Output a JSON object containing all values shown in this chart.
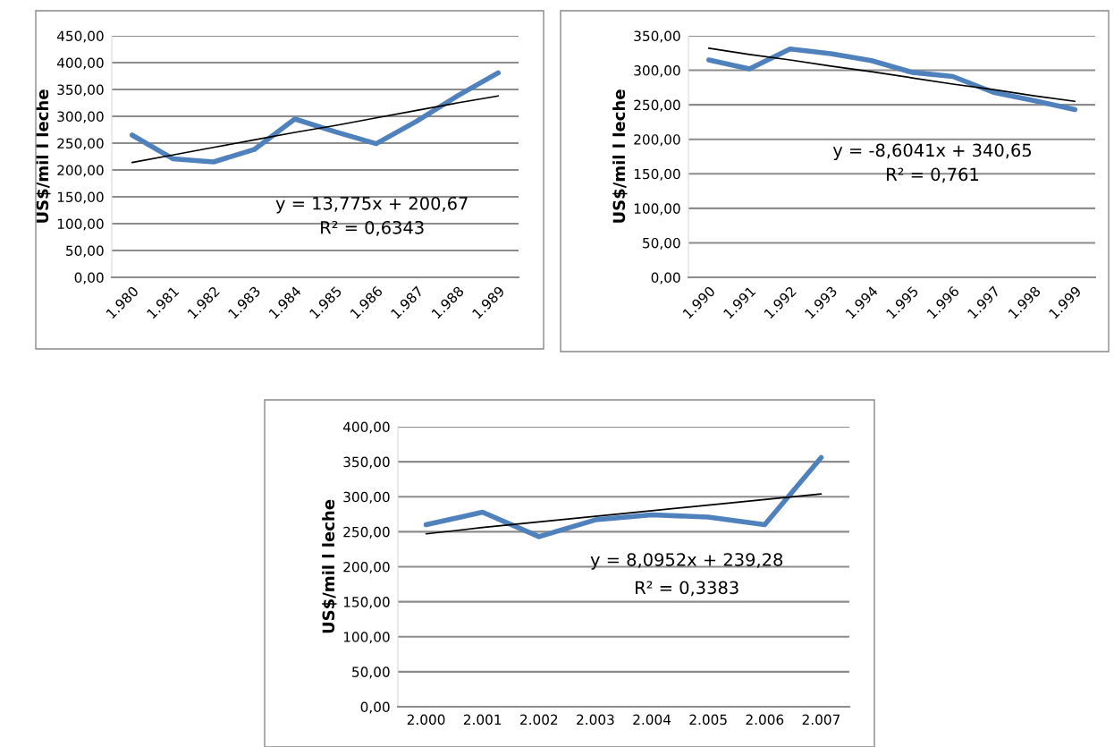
{
  "chart_data": [
    {
      "type": "line",
      "ylabel": "US$/mil l leche",
      "categories": [
        "1.980",
        "1.981",
        "1.982",
        "1.983",
        "1.984",
        "1.985",
        "1.986",
        "1.987",
        "1.988",
        "1.989"
      ],
      "series": [
        {
          "color": "#4f81bd",
          "values": [
            265,
            221,
            215,
            238,
            295,
            271,
            249,
            291,
            338,
            381
          ]
        },
        {
          "type": "line",
          "color": "#000000",
          "x": [
            "1.980",
            "1.981",
            "1.982",
            "1.983",
            "1.984",
            "1.985",
            "1.986",
            "1.987",
            "1.988",
            "1.989"
          ],
          "values": [
            214,
            228,
            242,
            256,
            270,
            283,
            297,
            311,
            325,
            338
          ]
        }
      ],
      "ylim": [
        0,
        450
      ],
      "yticks": [
        {
          "value": 0,
          "label": "0,00"
        },
        {
          "value": 50,
          "label": "50,00"
        },
        {
          "value": 100,
          "label": "100,00"
        },
        {
          "value": 150,
          "label": "150,00"
        },
        {
          "value": 200,
          "label": "200,00"
        },
        {
          "value": 250,
          "label": "250,00"
        },
        {
          "value": 300,
          "label": "300,00"
        },
        {
          "value": 350,
          "label": "350,00"
        },
        {
          "value": 400,
          "label": "400,00"
        },
        {
          "value": 450,
          "label": "450,00"
        }
      ],
      "grid": "y",
      "marker": "none",
      "line_style": "solid",
      "annotations": [
        "y = 13,775x + 200,67",
        "R² = 0,6343"
      ]
    },
    {
      "type": "line",
      "ylabel": "US$/mil l leche",
      "categories": [
        "1.990",
        "1.991",
        "1.992",
        "1.993",
        "1.994",
        "1.995",
        "1.996",
        "1.997",
        "1.998",
        "1.999"
      ],
      "series": [
        {
          "color": "#4f81bd",
          "values": [
            315,
            302,
            331,
            324,
            314,
            297,
            291,
            268,
            256,
            243
          ]
        },
        {
          "type": "line",
          "color": "#000000",
          "x": [
            "1.990",
            "1.991",
            "1.992",
            "1.993",
            "1.994",
            "1.995",
            "1.996",
            "1.997",
            "1.998",
            "1.999"
          ],
          "values": [
            332,
            323,
            315,
            306,
            298,
            289,
            280,
            272,
            263,
            255
          ]
        }
      ],
      "ylim": [
        0,
        350
      ],
      "yticks": [
        {
          "value": 0,
          "label": "0,00"
        },
        {
          "value": 50,
          "label": "50,00"
        },
        {
          "value": 100,
          "label": "100,00"
        },
        {
          "value": 150,
          "label": "150,00"
        },
        {
          "value": 200,
          "label": "200,00"
        },
        {
          "value": 250,
          "label": "250,00"
        },
        {
          "value": 300,
          "label": "300,00"
        },
        {
          "value": 350,
          "label": "350,00"
        }
      ],
      "grid": "y",
      "marker": "none",
      "line_style": "solid",
      "annotations": [
        "y = -8,6041x + 340,65",
        "R² = 0,761"
      ]
    },
    {
      "type": "line",
      "ylabel": "US$/mil l leche",
      "categories": [
        "2.000",
        "2.001",
        "2.002",
        "2.003",
        "2.004",
        "2.005",
        "2.006",
        "2.007"
      ],
      "series": [
        {
          "color": "#4f81bd",
          "values": [
            260,
            278,
            243,
            267,
            274,
            271,
            260,
            356
          ]
        },
        {
          "type": "line",
          "color": "#000000",
          "x": [
            "2.000",
            "2.001",
            "2.002",
            "2.003",
            "2.004",
            "2.005",
            "2.006",
            "2.007"
          ],
          "values": [
            247,
            256,
            264,
            272,
            280,
            288,
            296,
            304
          ]
        }
      ],
      "ylim": [
        0,
        400
      ],
      "yticks": [
        {
          "value": 0,
          "label": "0,00"
        },
        {
          "value": 50,
          "label": "50,00"
        },
        {
          "value": 100,
          "label": "100,00"
        },
        {
          "value": 150,
          "label": "150,00"
        },
        {
          "value": 200,
          "label": "200,00"
        },
        {
          "value": 250,
          "label": "250,00"
        },
        {
          "value": 300,
          "label": "300,00"
        },
        {
          "value": 350,
          "label": "350,00"
        },
        {
          "value": 400,
          "label": "400,00"
        }
      ],
      "grid": "y",
      "marker": "none",
      "line_style": "solid",
      "annotations": [
        "y = 8,0952x + 239,28",
        "R² = 0,3383"
      ]
    }
  ]
}
